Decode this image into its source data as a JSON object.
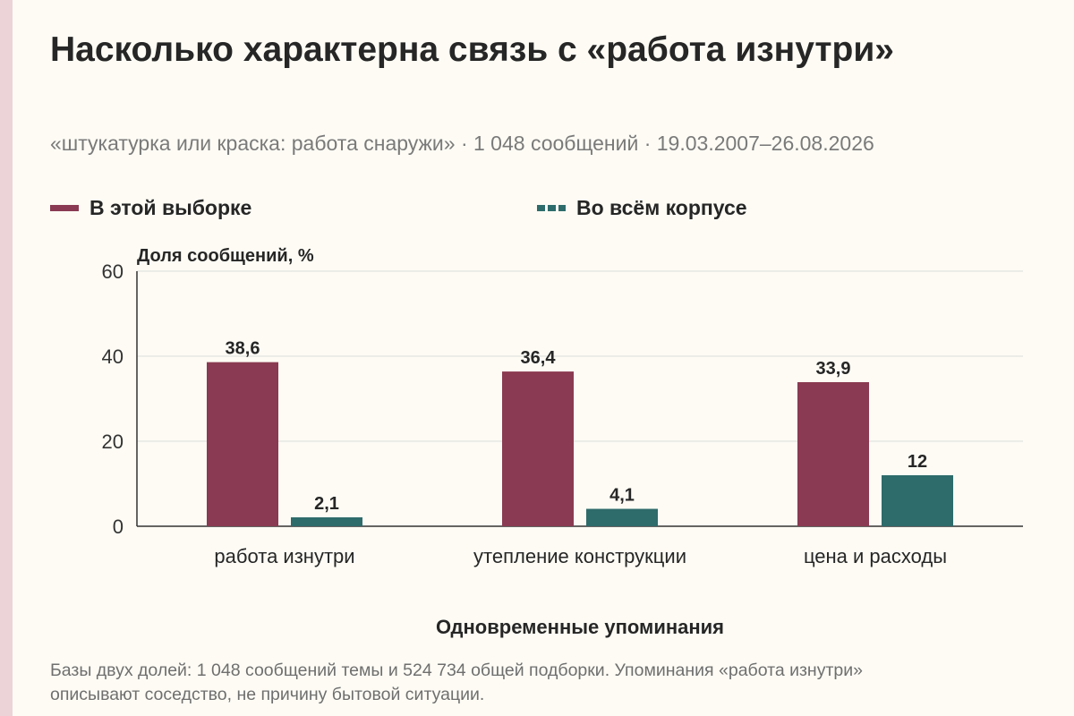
{
  "title": "Насколько характерна связь с «работа изнутри»",
  "subtitle": "«штукатурка или краска: работа снаружи» · 1 048 сообщений · 19.03.2007–26.08.2026",
  "footnote": "Базы двух долей: 1 048 сообщений темы и 524 734 общей подборки. Упоминания «работа изнутри» описывают соседство, не причину бытовой ситуации.",
  "colors": {
    "sample": "#8a3a52",
    "corpus": "#2e6b6b",
    "grid": "#dcdcdc",
    "axis": "#333333"
  },
  "chart_data": {
    "type": "bar",
    "title": "Насколько характерна связь с «работа изнутри»",
    "ylabel": "Доля сообщений, %",
    "xlabel": "Одновременные упоминания",
    "ylim": [
      0,
      60
    ],
    "yticks": [
      0,
      20,
      40,
      60
    ],
    "grid": true,
    "legend_position": "top",
    "categories": [
      "работа изнутри",
      "утепление конструкции",
      "цена и расходы"
    ],
    "series": [
      {
        "name": "В этой выборке",
        "values": [
          38.6,
          36.4,
          33.9
        ],
        "labels": [
          "38,6",
          "36,4",
          "33,9"
        ],
        "color": "#8a3a52"
      },
      {
        "name": "Во всём корпусе",
        "values": [
          2.1,
          4.1,
          12
        ],
        "labels": [
          "2,1",
          "4,1",
          "12"
        ],
        "color": "#2e6b6b"
      }
    ]
  }
}
